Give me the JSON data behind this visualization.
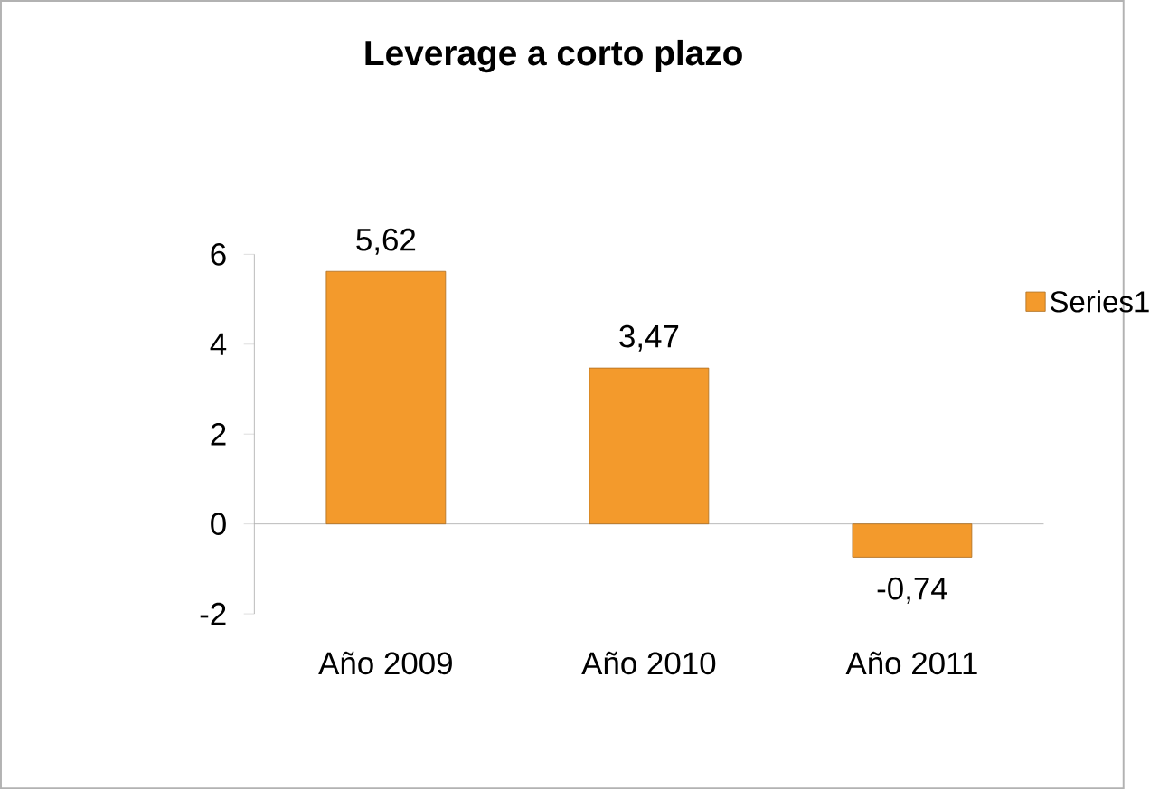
{
  "chart_data": {
    "type": "bar",
    "title": "Leverage a corto plazo",
    "categories": [
      "Año 2009",
      "Año 2010",
      "Año 2011"
    ],
    "series": [
      {
        "name": "Series1",
        "color": "#f39a2c",
        "values": [
          5.62,
          3.47,
          -0.74
        ],
        "value_labels": [
          "5,62",
          "3,47",
          "-0,74"
        ]
      }
    ],
    "ylim": [
      -2,
      6
    ],
    "yticks": [
      -2,
      0,
      2,
      4,
      6
    ],
    "legend": "right"
  }
}
